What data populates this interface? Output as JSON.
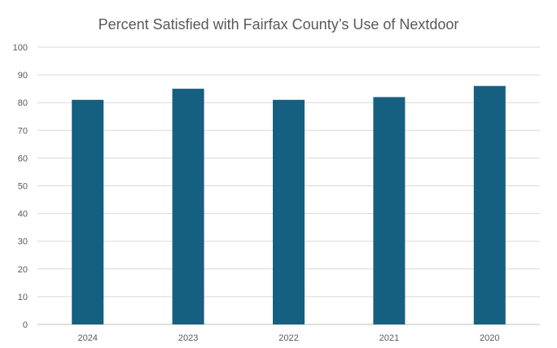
{
  "chart_data": {
    "type": "bar",
    "title": "Percent Satisfied with Fairfax County’s Use of Nextdoor",
    "xlabel": "",
    "ylabel": "",
    "categories": [
      "2024",
      "2023",
      "2022",
      "2021",
      "2020"
    ],
    "values": [
      81,
      85,
      81,
      82,
      86
    ],
    "ylim": [
      0,
      100
    ],
    "yticks": [
      "0",
      "10",
      "20",
      "30",
      "40",
      "50",
      "60",
      "70",
      "80",
      "90",
      "100"
    ],
    "grid": true,
    "legend": "none",
    "bar_color": "#155f81"
  }
}
